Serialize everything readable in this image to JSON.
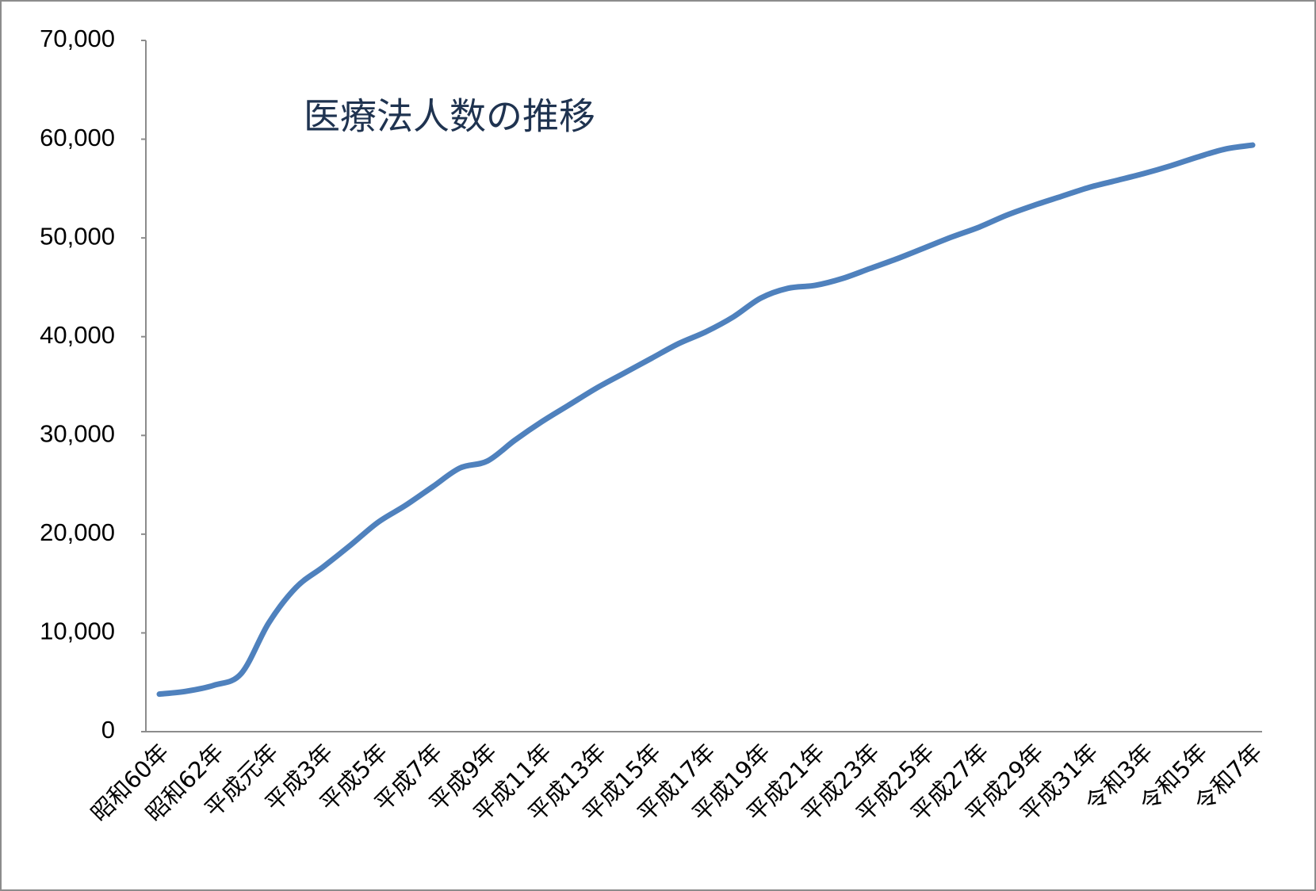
{
  "chart_data": {
    "type": "line",
    "title": "医療法人数の推移",
    "categories": [
      "昭和60年",
      null,
      "昭和62年",
      null,
      "平成元年",
      null,
      "平成3年",
      null,
      "平成5年",
      null,
      "平成7年",
      null,
      "平成9年",
      null,
      "平成11年",
      null,
      "平成13年",
      null,
      "平成15年",
      null,
      "平成17年",
      null,
      "平成19年",
      null,
      "平成21年",
      null,
      "平成23年",
      null,
      "平成25年",
      null,
      "平成27年",
      null,
      "平成29年",
      null,
      "平成31年",
      null,
      "令和3年",
      null,
      "令和5年",
      null,
      "令和7年"
    ],
    "series": [
      {
        "color": "#4f81bd",
        "values": [
          3800,
          4100,
          4700,
          5900,
          11000,
          14600,
          16700,
          18900,
          21200,
          22900,
          24800,
          26700,
          27400,
          29500,
          31400,
          33100,
          34800,
          36300,
          37800,
          39300,
          40500,
          42000,
          43900,
          44900,
          45200,
          45900,
          46900,
          47900,
          49000,
          50100,
          51100,
          52300,
          53300,
          54200,
          55100,
          55800,
          56500,
          57300,
          58200,
          59000,
          59400
        ]
      }
    ],
    "ylim": [
      0,
      70000
    ],
    "yticks": [
      0,
      {
        "value": 10000,
        "label": "10,000"
      },
      {
        "value": 20000,
        "label": "20,000"
      },
      {
        "value": 30000,
        "label": "30,000"
      },
      {
        "value": 40000,
        "label": "40,000"
      },
      {
        "value": 50000,
        "label": "50,000"
      },
      {
        "value": 60000,
        "label": "60,000"
      },
      {
        "value": 70000,
        "label": "70,000"
      }
    ],
    "grid": false
  }
}
